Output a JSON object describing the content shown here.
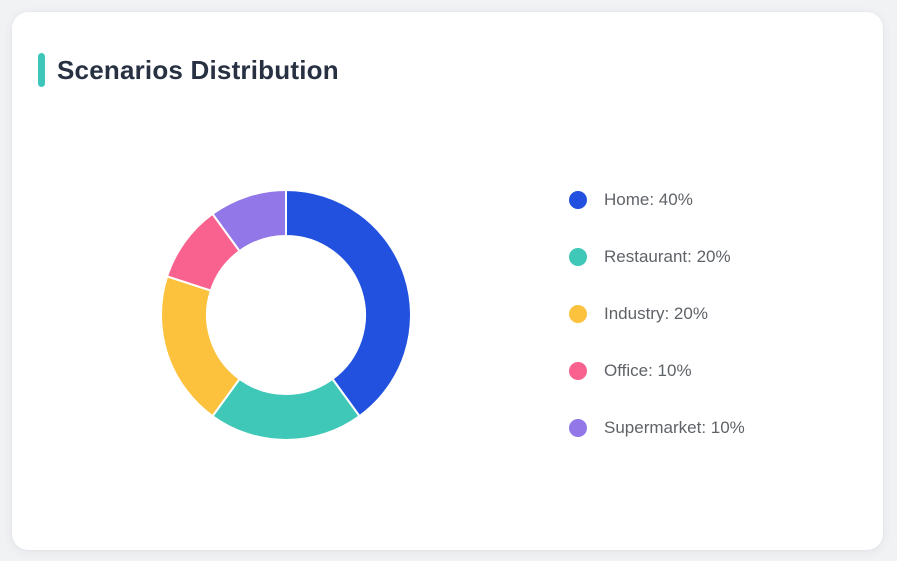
{
  "page": {
    "background_color": "#f1f2f4"
  },
  "card": {
    "title": "Scenarios Distribution",
    "accent_color": "#3ec6bb",
    "background_color": "#ffffff",
    "title_color": "#273142"
  },
  "legend": {
    "text_color": "#5f6368",
    "position": "right"
  },
  "chart_data": {
    "type": "pie",
    "style": "donut",
    "title": "Scenarios Distribution",
    "unit": "%",
    "start_angle_deg": 0,
    "direction": "clockwise",
    "outer_radius_px": 125,
    "inner_radius_px": 79,
    "slice_gap_color": "#ffffff",
    "legend_position": "right",
    "segments": [
      {
        "name": "Home",
        "value": 40,
        "color": "#2251e0",
        "legend_label": "Home: 40%"
      },
      {
        "name": "Restaurant",
        "value": 20,
        "color": "#3fc8b7",
        "legend_label": "Restaurant: 20%"
      },
      {
        "name": "Industry",
        "value": 20,
        "color": "#fcc23d",
        "legend_label": "Industry: 20%"
      },
      {
        "name": "Office",
        "value": 10,
        "color": "#f9618f",
        "legend_label": "Office: 10%"
      },
      {
        "name": "Supermarket",
        "value": 10,
        "color": "#9177e8",
        "legend_label": "Supermarket: 10%"
      }
    ]
  }
}
